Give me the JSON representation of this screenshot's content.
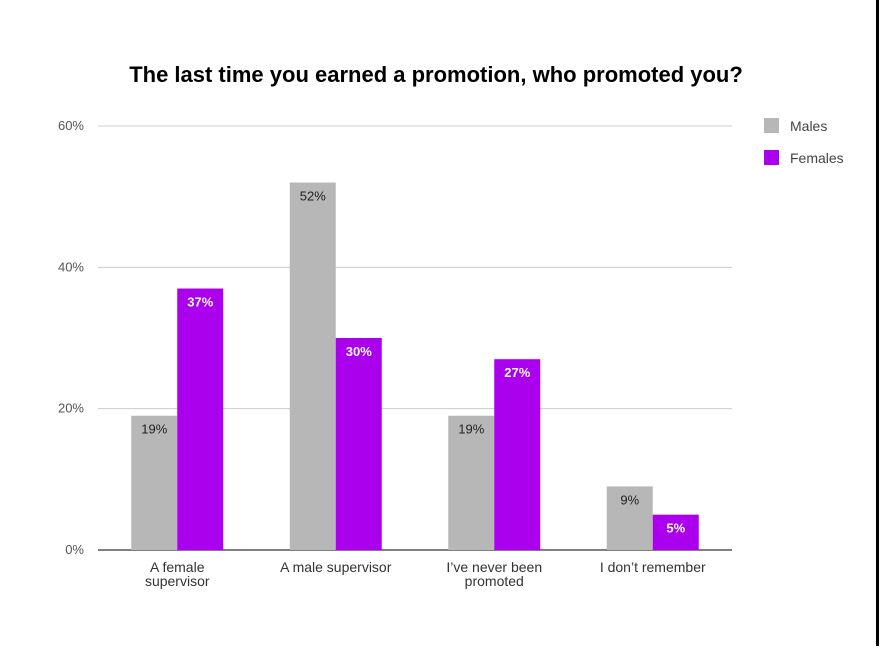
{
  "chart_data": {
    "type": "bar",
    "title": "The last time you earned a promotion, who promoted you?",
    "categories": [
      [
        "A female",
        "supervisor"
      ],
      [
        "A male supervisor"
      ],
      [
        "I’ve never been",
        "promoted"
      ],
      [
        "I don’t remember"
      ]
    ],
    "series": [
      {
        "name": "Males",
        "color": "#b7b7b7",
        "values": [
          19,
          52,
          19,
          9
        ],
        "labels": [
          "19%",
          "52%",
          "19%",
          "9%"
        ]
      },
      {
        "name": "Females",
        "color": "#aa00ee",
        "values": [
          37,
          30,
          27,
          5
        ],
        "labels": [
          "37%",
          "30%",
          "27%",
          "5%"
        ]
      }
    ],
    "ylim": [
      0,
      60
    ],
    "yticks": [
      0,
      20,
      40,
      60
    ],
    "ytick_labels": [
      "0%",
      "20%",
      "40%",
      "60%"
    ],
    "grid": true,
    "legend_position": "right"
  }
}
